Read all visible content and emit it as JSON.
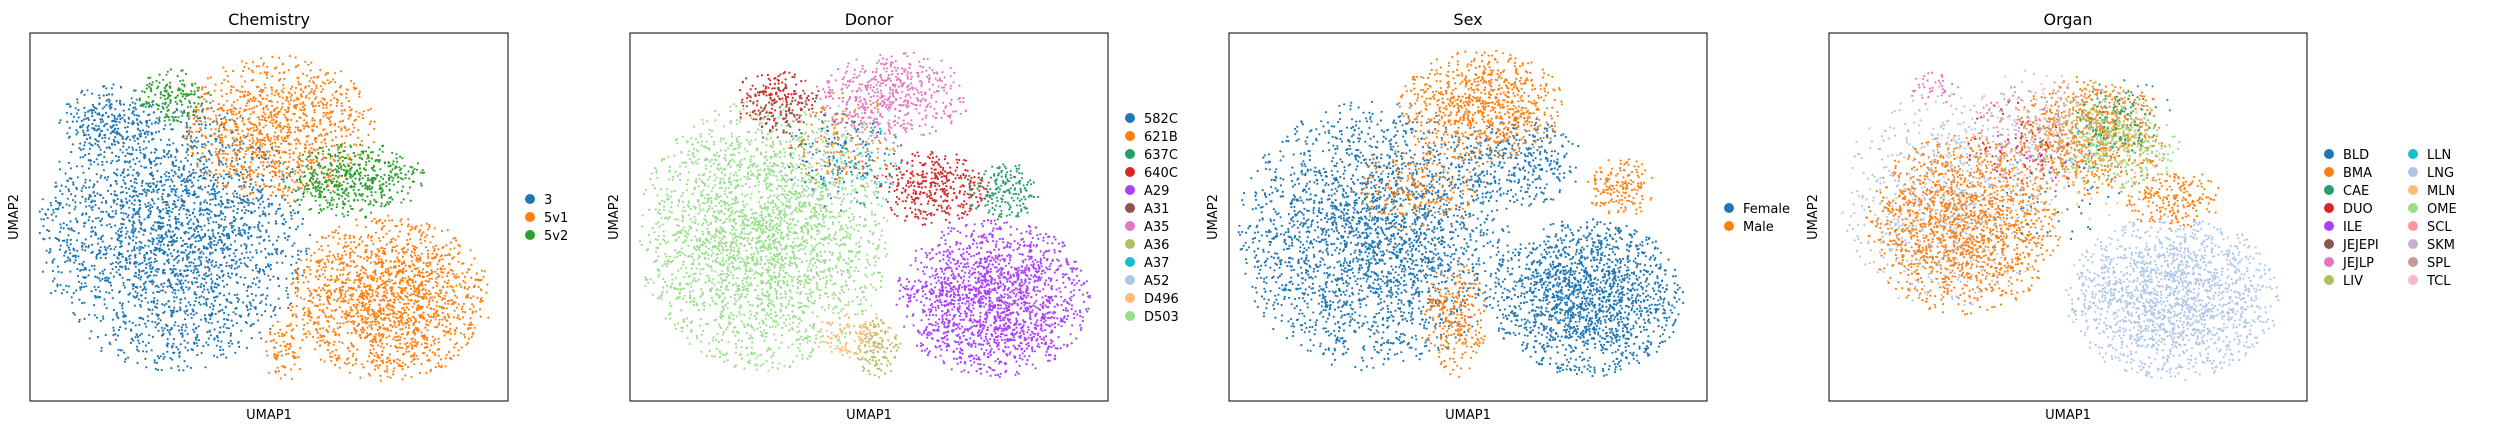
{
  "colors": {
    "frame": "#000000",
    "background": "#ffffff"
  },
  "chart_data": [
    {
      "type": "scatter",
      "title": "Chemistry",
      "xlabel": "UMAP1",
      "ylabel": "UMAP2",
      "grid": false,
      "legend_position": "right",
      "legend_columns": 1,
      "categories": [
        {
          "name": "3",
          "color": "#1f77b4"
        },
        {
          "name": "5v1",
          "color": "#ff7f0e"
        },
        {
          "name": "5v2",
          "color": "#2ca02c"
        }
      ],
      "clusters": [
        {
          "cat": "3",
          "cx": 0.3,
          "cy": 0.55,
          "rx": 0.28,
          "ry": 0.36,
          "n": 2600
        },
        {
          "cat": "3",
          "cx": 0.16,
          "cy": 0.24,
          "rx": 0.1,
          "ry": 0.1,
          "n": 260
        },
        {
          "cat": "5v1",
          "cx": 0.75,
          "cy": 0.72,
          "rx": 0.21,
          "ry": 0.22,
          "n": 1700
        },
        {
          "cat": "5v1",
          "cx": 0.52,
          "cy": 0.26,
          "rx": 0.2,
          "ry": 0.2,
          "n": 1100
        },
        {
          "cat": "5v1",
          "cx": 0.53,
          "cy": 0.87,
          "rx": 0.04,
          "ry": 0.09,
          "n": 80
        },
        {
          "cat": "5v2",
          "cx": 0.68,
          "cy": 0.4,
          "rx": 0.15,
          "ry": 0.1,
          "n": 500
        },
        {
          "cat": "5v2",
          "cx": 0.3,
          "cy": 0.17,
          "rx": 0.08,
          "ry": 0.07,
          "n": 160
        }
      ]
    },
    {
      "type": "scatter",
      "title": "Donor",
      "xlabel": "UMAP1",
      "ylabel": "UMAP2",
      "grid": false,
      "legend_position": "right",
      "legend_columns": 1,
      "categories": [
        {
          "name": "582C",
          "color": "#1f77b4"
        },
        {
          "name": "621B",
          "color": "#ff7f0e"
        },
        {
          "name": "637C",
          "color": "#279e68"
        },
        {
          "name": "640C",
          "color": "#d62728"
        },
        {
          "name": "A29",
          "color": "#aa40fc"
        },
        {
          "name": "A31",
          "color": "#8c564b"
        },
        {
          "name": "A35",
          "color": "#e377c2"
        },
        {
          "name": "A36",
          "color": "#b5bd61"
        },
        {
          "name": "A37",
          "color": "#17becf"
        },
        {
          "name": "A52",
          "color": "#aec7e8"
        },
        {
          "name": "D496",
          "color": "#ffbb78"
        },
        {
          "name": "D503",
          "color": "#98df8a"
        }
      ],
      "clusters": [
        {
          "cat": "D503",
          "cx": 0.28,
          "cy": 0.55,
          "rx": 0.26,
          "ry": 0.36,
          "n": 2700
        },
        {
          "cat": "A29",
          "cx": 0.76,
          "cy": 0.72,
          "rx": 0.2,
          "ry": 0.21,
          "n": 1800
        },
        {
          "cat": "A35",
          "cx": 0.55,
          "cy": 0.17,
          "rx": 0.16,
          "ry": 0.12,
          "n": 520
        },
        {
          "cat": "640C",
          "cx": 0.63,
          "cy": 0.42,
          "rx": 0.12,
          "ry": 0.1,
          "n": 360
        },
        {
          "cat": "640C",
          "cx": 0.3,
          "cy": 0.18,
          "rx": 0.09,
          "ry": 0.08,
          "n": 160
        },
        {
          "cat": "637C",
          "cx": 0.78,
          "cy": 0.43,
          "rx": 0.08,
          "ry": 0.08,
          "n": 180
        },
        {
          "cat": "A36",
          "cx": 0.52,
          "cy": 0.86,
          "rx": 0.05,
          "ry": 0.08,
          "n": 120
        },
        {
          "cat": "D496",
          "cx": 0.47,
          "cy": 0.82,
          "rx": 0.09,
          "ry": 0.07,
          "n": 120
        },
        {
          "cat": "582C",
          "cx": 0.45,
          "cy": 0.34,
          "rx": 0.12,
          "ry": 0.14,
          "n": 130
        },
        {
          "cat": "621B",
          "cx": 0.45,
          "cy": 0.3,
          "rx": 0.12,
          "ry": 0.14,
          "n": 130
        },
        {
          "cat": "A31",
          "cx": 0.33,
          "cy": 0.22,
          "rx": 0.1,
          "ry": 0.1,
          "n": 80
        },
        {
          "cat": "A37",
          "cx": 0.48,
          "cy": 0.35,
          "rx": 0.1,
          "ry": 0.12,
          "n": 50
        },
        {
          "cat": "A52",
          "cx": 0.45,
          "cy": 0.32,
          "rx": 0.14,
          "ry": 0.14,
          "n": 80
        }
      ]
    },
    {
      "type": "scatter",
      "title": "Sex",
      "xlabel": "UMAP1",
      "ylabel": "UMAP2",
      "grid": false,
      "legend_position": "right",
      "legend_columns": 1,
      "categories": [
        {
          "name": "Female",
          "color": "#1f77b4"
        },
        {
          "name": "Male",
          "color": "#ff7f0e"
        }
      ],
      "clusters": [
        {
          "cat": "Female",
          "cx": 0.3,
          "cy": 0.55,
          "rx": 0.28,
          "ry": 0.36,
          "n": 2600
        },
        {
          "cat": "Female",
          "cx": 0.75,
          "cy": 0.72,
          "rx": 0.2,
          "ry": 0.21,
          "n": 1700
        },
        {
          "cat": "Female",
          "cx": 0.6,
          "cy": 0.35,
          "rx": 0.14,
          "ry": 0.12,
          "n": 350
        },
        {
          "cat": "Male",
          "cx": 0.53,
          "cy": 0.2,
          "rx": 0.17,
          "ry": 0.15,
          "n": 800
        },
        {
          "cat": "Male",
          "cx": 0.82,
          "cy": 0.42,
          "rx": 0.07,
          "ry": 0.08,
          "n": 160
        },
        {
          "cat": "Male",
          "cx": 0.47,
          "cy": 0.78,
          "rx": 0.07,
          "ry": 0.16,
          "n": 260
        },
        {
          "cat": "Male",
          "cx": 0.4,
          "cy": 0.42,
          "rx": 0.14,
          "ry": 0.12,
          "n": 220
        }
      ]
    },
    {
      "type": "scatter",
      "title": "Organ",
      "xlabel": "UMAP1",
      "ylabel": "UMAP2",
      "grid": false,
      "legend_position": "right",
      "legend_columns": 2,
      "categories": [
        {
          "name": "BLD",
          "color": "#1f77b4"
        },
        {
          "name": "BMA",
          "color": "#ff7f0e"
        },
        {
          "name": "CAE",
          "color": "#279e68"
        },
        {
          "name": "DUO",
          "color": "#d62728"
        },
        {
          "name": "ILE",
          "color": "#aa40fc"
        },
        {
          "name": "JEJEPI",
          "color": "#8c564b"
        },
        {
          "name": "JEJLP",
          "color": "#e377c2"
        },
        {
          "name": "LIV",
          "color": "#b5bd61"
        },
        {
          "name": "LLN",
          "color": "#17becf"
        },
        {
          "name": "LNG",
          "color": "#aec7e8"
        },
        {
          "name": "MLN",
          "color": "#ffbb78"
        },
        {
          "name": "OME",
          "color": "#98df8a"
        },
        {
          "name": "SCL",
          "color": "#ff9896"
        },
        {
          "name": "SKM",
          "color": "#c5b0d5"
        },
        {
          "name": "SPL",
          "color": "#c49c94"
        },
        {
          "name": "TCL",
          "color": "#f7b6d2"
        }
      ],
      "clusters": [
        {
          "cat": "LNG",
          "cx": 0.72,
          "cy": 0.72,
          "rx": 0.22,
          "ry": 0.22,
          "n": 1700
        },
        {
          "cat": "LNG",
          "cx": 0.25,
          "cy": 0.45,
          "rx": 0.22,
          "ry": 0.3,
          "n": 800
        },
        {
          "cat": "BMA",
          "cx": 0.28,
          "cy": 0.52,
          "rx": 0.2,
          "ry": 0.24,
          "n": 1500
        },
        {
          "cat": "BMA",
          "cx": 0.55,
          "cy": 0.28,
          "rx": 0.16,
          "ry": 0.16,
          "n": 700
        },
        {
          "cat": "BMA",
          "cx": 0.72,
          "cy": 0.45,
          "rx": 0.1,
          "ry": 0.08,
          "n": 200
        },
        {
          "cat": "OME",
          "cx": 0.6,
          "cy": 0.3,
          "rx": 0.14,
          "ry": 0.12,
          "n": 320
        },
        {
          "cat": "LIV",
          "cx": 0.55,
          "cy": 0.25,
          "rx": 0.12,
          "ry": 0.12,
          "n": 160
        },
        {
          "cat": "CAE",
          "cx": 0.62,
          "cy": 0.22,
          "rx": 0.1,
          "ry": 0.1,
          "n": 100
        },
        {
          "cat": "DUO",
          "cx": 0.4,
          "cy": 0.3,
          "rx": 0.12,
          "ry": 0.12,
          "n": 60
        },
        {
          "cat": "SPL",
          "cx": 0.45,
          "cy": 0.25,
          "rx": 0.15,
          "ry": 0.12,
          "n": 140
        },
        {
          "cat": "SCL",
          "cx": 0.42,
          "cy": 0.3,
          "rx": 0.12,
          "ry": 0.12,
          "n": 60
        },
        {
          "cat": "BLD",
          "cx": 0.45,
          "cy": 0.45,
          "rx": 0.18,
          "ry": 0.18,
          "n": 40
        },
        {
          "cat": "JEJLP",
          "cx": 0.22,
          "cy": 0.15,
          "rx": 0.05,
          "ry": 0.05,
          "n": 40
        },
        {
          "cat": "TCL",
          "cx": 0.45,
          "cy": 0.2,
          "rx": 0.14,
          "ry": 0.1,
          "n": 60
        },
        {
          "cat": "MLN",
          "cx": 0.5,
          "cy": 0.4,
          "rx": 0.15,
          "ry": 0.15,
          "n": 80
        },
        {
          "cat": "ILE",
          "cx": 0.45,
          "cy": 0.35,
          "rx": 0.12,
          "ry": 0.12,
          "n": 20
        },
        {
          "cat": "SKM",
          "cx": 0.4,
          "cy": 0.25,
          "rx": 0.12,
          "ry": 0.1,
          "n": 30
        },
        {
          "cat": "LLN",
          "cx": 0.55,
          "cy": 0.3,
          "rx": 0.12,
          "ry": 0.12,
          "n": 15
        },
        {
          "cat": "JEJEPI",
          "cx": 0.45,
          "cy": 0.3,
          "rx": 0.1,
          "ry": 0.1,
          "n": 10
        }
      ]
    }
  ]
}
